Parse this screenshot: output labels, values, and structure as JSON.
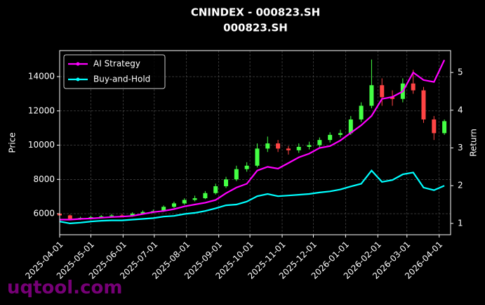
{
  "chart_data": {
    "type": "candlestick",
    "title": "CNINDEX - 000823.SH",
    "subtitle": "000823.SH",
    "ylabel": "Price",
    "y2label": "Return",
    "watermark": "uqtool.com",
    "x": [
      "2025-04-01",
      "2025-04-11",
      "2025-04-21",
      "2025-05-01",
      "2025-05-11",
      "2025-05-21",
      "2025-05-31",
      "2025-06-10",
      "2025-06-20",
      "2025-06-30",
      "2025-07-10",
      "2025-07-20",
      "2025-07-30",
      "2025-08-09",
      "2025-08-19",
      "2025-08-29",
      "2025-09-08",
      "2025-09-18",
      "2025-09-28",
      "2025-10-08",
      "2025-10-18",
      "2025-10-28",
      "2025-11-07",
      "2025-11-17",
      "2025-11-27",
      "2025-12-07",
      "2025-12-17",
      "2025-12-27",
      "2026-01-06",
      "2026-01-16",
      "2026-01-26",
      "2026-02-05",
      "2026-02-15",
      "2026-02-25",
      "2026-03-07",
      "2026-03-17",
      "2026-03-27",
      "2026-04-06"
    ],
    "open": [
      6000,
      5900,
      5700,
      5750,
      5800,
      5850,
      5900,
      5880,
      6000,
      6100,
      6150,
      6400,
      6600,
      6800,
      6900,
      7200,
      7600,
      8000,
      8600,
      8800,
      9800,
      10100,
      9800,
      9700,
      9900,
      10000,
      10300,
      10600,
      10700,
      11500,
      12300,
      13500,
      12800,
      12700,
      13600,
      13200,
      11500,
      10700
    ],
    "high": [
      6080,
      5950,
      5820,
      5880,
      5920,
      5980,
      5990,
      6080,
      6190,
      6240,
      6480,
      6700,
      6900,
      7050,
      7320,
      7750,
      8150,
      8800,
      9000,
      10100,
      10500,
      10300,
      9950,
      10100,
      10200,
      10450,
      10750,
      10900,
      11700,
      12500,
      15000,
      13900,
      13200,
      13900,
      14400,
      13400,
      11700,
      11500
    ],
    "low": [
      5820,
      5620,
      5640,
      5700,
      5740,
      5790,
      5800,
      5830,
      5940,
      6030,
      6100,
      6330,
      6520,
      6720,
      6850,
      7120,
      7500,
      7900,
      8450,
      8700,
      9600,
      9600,
      9450,
      9550,
      9750,
      9850,
      10150,
      10450,
      10600,
      11350,
      12150,
      12300,
      12300,
      12500,
      13000,
      11300,
      10300,
      10600
    ],
    "close": [
      5900,
      5700,
      5750,
      5800,
      5850,
      5900,
      5880,
      6000,
      6100,
      6150,
      6400,
      6600,
      6800,
      6900,
      7200,
      7600,
      8000,
      8600,
      8800,
      9800,
      10100,
      9800,
      9700,
      9900,
      10000,
      10300,
      10600,
      10700,
      11500,
      12300,
      13500,
      12800,
      12700,
      13600,
      13200,
      11500,
      10700,
      11400
    ],
    "up_color": "#44ff44",
    "down_color": "#ff4444",
    "series": [
      {
        "name": "AI Strategy",
        "color": "#ff00ff",
        "axis": "y2",
        "values": [
          1.1,
          1.1,
          1.12,
          1.13,
          1.15,
          1.17,
          1.18,
          1.2,
          1.25,
          1.3,
          1.33,
          1.38,
          1.45,
          1.5,
          1.55,
          1.62,
          1.8,
          1.95,
          2.05,
          2.4,
          2.5,
          2.45,
          2.6,
          2.75,
          2.85,
          3.0,
          3.05,
          3.2,
          3.4,
          3.6,
          3.85,
          4.3,
          4.35,
          4.5,
          5.0,
          4.8,
          4.75,
          5.33
        ]
      },
      {
        "name": "Buy-and-Hold",
        "color": "#00ffff",
        "axis": "y2",
        "values": [
          1.05,
          1.0,
          1.02,
          1.05,
          1.07,
          1.08,
          1.08,
          1.1,
          1.12,
          1.14,
          1.18,
          1.2,
          1.25,
          1.28,
          1.33,
          1.4,
          1.48,
          1.5,
          1.58,
          1.72,
          1.78,
          1.72,
          1.74,
          1.76,
          1.78,
          1.82,
          1.85,
          1.9,
          1.98,
          2.05,
          2.4,
          2.1,
          2.15,
          2.3,
          2.35,
          1.95,
          1.88,
          2.0
        ]
      }
    ],
    "xlim": [
      "2025-04-01",
      "2026-04-12"
    ],
    "xticks": [
      "2025-04-01",
      "2025-05-01",
      "2025-06-01",
      "2025-07-01",
      "2025-08-01",
      "2025-09-01",
      "2025-10-01",
      "2025-11-01",
      "2025-12-01",
      "2026-01-01",
      "2026-02-01",
      "2026-03-01",
      "2026-04-01"
    ],
    "ylim": [
      4770,
      15520
    ],
    "yticks": [
      6000,
      8000,
      10000,
      12000,
      14000
    ],
    "y2lim": [
      0.7,
      5.58
    ],
    "y2ticks": [
      1,
      2,
      3,
      4,
      5
    ],
    "grid": true,
    "legend": "upper left"
  }
}
